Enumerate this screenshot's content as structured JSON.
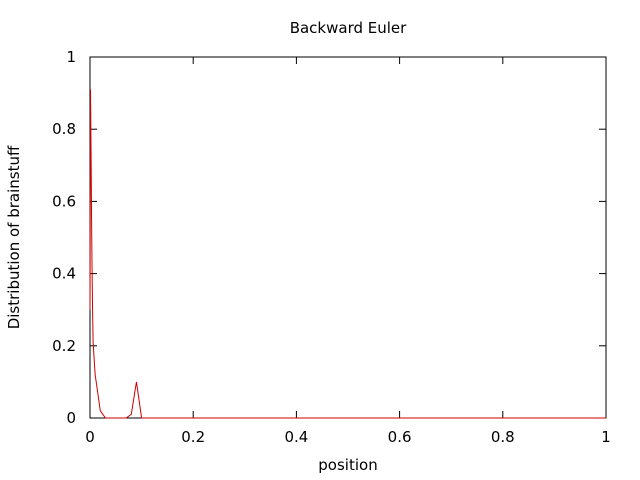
{
  "chart_data": {
    "type": "line",
    "title": "Backward Euler",
    "xlabel": "position",
    "ylabel": "Distribution of brainstuff",
    "xlim": [
      0,
      1
    ],
    "ylim": [
      0,
      1
    ],
    "xticks": [
      0,
      0.2,
      0.4,
      0.6,
      0.8,
      1
    ],
    "yticks": [
      0,
      0.2,
      0.4,
      0.6,
      0.8,
      1
    ],
    "xtick_labels": [
      "0",
      "0.2",
      "0.4",
      "0.6",
      "0.8",
      "1"
    ],
    "ytick_labels": [
      "0",
      "0.2",
      "0.4",
      "0.6",
      "0.8",
      "1"
    ],
    "grid": false,
    "series": [
      {
        "color": "#cc0000",
        "x": [
          0,
          0.001,
          0.002,
          0.003,
          0.004,
          0.005,
          0.006,
          0.01,
          0.02,
          0.03,
          0.04,
          0.05,
          0.06,
          0.07,
          0.08,
          0.09,
          0.1,
          0.11,
          0.2,
          0.4,
          0.6,
          0.8,
          1
        ],
        "y": [
          0.3,
          0.91,
          0.74,
          0.56,
          0.41,
          0.3,
          0.21,
          0.12,
          0.02,
          0.0,
          0.0,
          0.0,
          0.0,
          0.0,
          0.01,
          0.1,
          0.0,
          0.0,
          0.0,
          0.0,
          0.0,
          0.0,
          0.0
        ]
      }
    ]
  }
}
